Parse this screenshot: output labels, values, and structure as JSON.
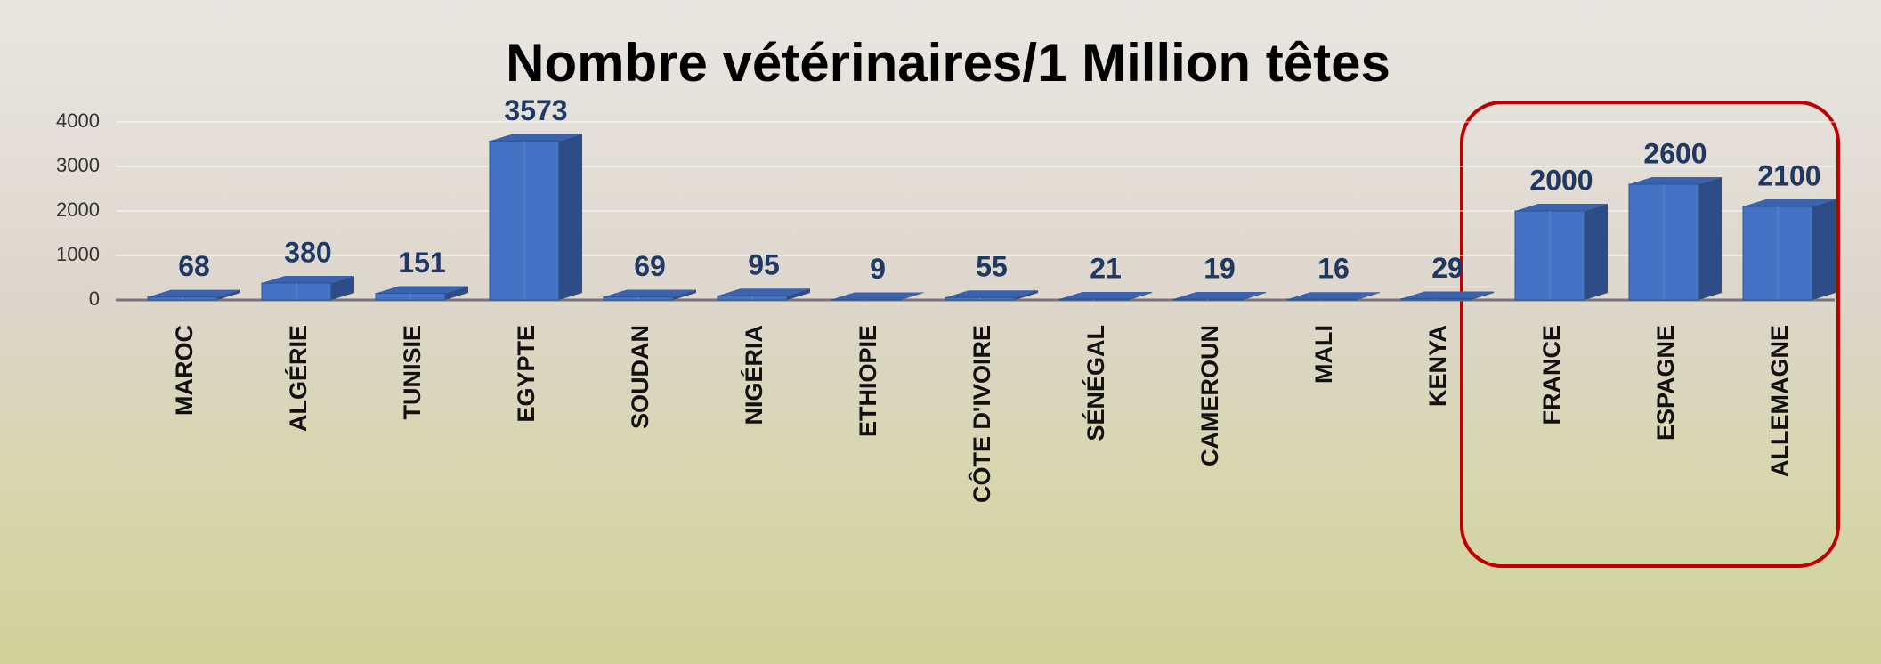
{
  "chart_data": {
    "type": "bar3d",
    "title": "Nombre vétérinaires/1 Million têtes",
    "categories": [
      "MAROC",
      "ALGÉRIE",
      "TUNISIE",
      "EGYPTE",
      "SOUDAN",
      "NIGÉRIA",
      "ETHIOPIE",
      "CÔTE D'IVOIRE",
      "SÉNÉGAL",
      "CAMEROUN",
      "MALI",
      "KENYA",
      "FRANCE",
      "ESPAGNE",
      "ALLEMAGNE"
    ],
    "values": [
      68,
      380,
      151,
      3573,
      69,
      95,
      9,
      55,
      21,
      19,
      16,
      29,
      2000,
      2600,
      2100
    ],
    "color": "#4472c4",
    "ylim": [
      0,
      4000
    ],
    "yticks": [
      0,
      1000,
      2000,
      3000,
      4000
    ],
    "grid": true
  }
}
